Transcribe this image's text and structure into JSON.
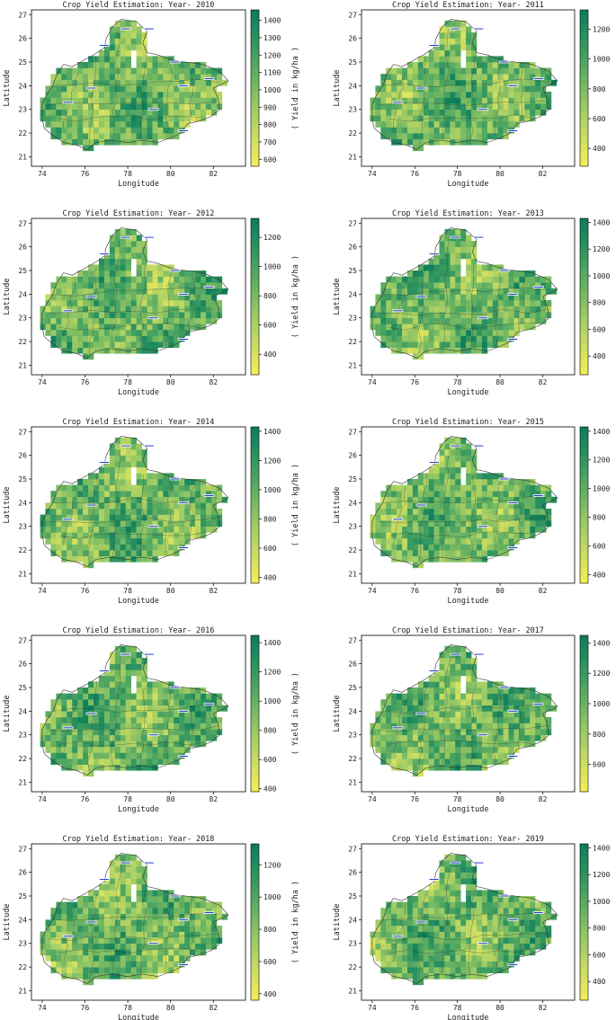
{
  "figure": {
    "x_label": "Longitude",
    "y_label": "Latitude",
    "colorbar_label": "( Yield in kg/ha )",
    "x_ticks": [
      74,
      76,
      78,
      80,
      82
    ],
    "y_ticks": [
      21,
      22,
      23,
      24,
      25,
      26,
      27
    ],
    "xlim": [
      73.5,
      83.5
    ],
    "ylim": [
      20.6,
      27.2
    ],
    "colormap": [
      "#f5ee58",
      "#c8dc63",
      "#96c864",
      "#5fae62",
      "#2e9460",
      "#0b7c5a"
    ]
  },
  "chart_data": [
    {
      "type": "heatmap",
      "title": "Crop Yield Estimation: Year- 2010",
      "colorbar_range": [
        560,
        1460
      ],
      "colorbar_ticks": [
        600,
        700,
        800,
        900,
        1000,
        1100,
        1200,
        1300,
        1400
      ]
    },
    {
      "type": "heatmap",
      "title": "Crop Yield Estimation: Year- 2011",
      "colorbar_range": [
        280,
        1330
      ],
      "colorbar_ticks": [
        400,
        600,
        800,
        1000,
        1200
      ]
    },
    {
      "type": "heatmap",
      "title": "Crop Yield Estimation: Year- 2012",
      "colorbar_range": [
        260,
        1330
      ],
      "colorbar_ticks": [
        400,
        600,
        800,
        1000,
        1200
      ]
    },
    {
      "type": "heatmap",
      "title": "Crop Yield Estimation: Year- 2013",
      "colorbar_range": [
        260,
        1430
      ],
      "colorbar_ticks": [
        400,
        600,
        800,
        1000,
        1200,
        1400
      ]
    },
    {
      "type": "heatmap",
      "title": "Crop Yield Estimation: Year- 2014",
      "colorbar_range": [
        360,
        1430
      ],
      "colorbar_ticks": [
        400,
        600,
        800,
        1000,
        1200,
        1400
      ]
    },
    {
      "type": "heatmap",
      "title": "Crop Yield Estimation: Year- 2015",
      "colorbar_range": [
        340,
        1430
      ],
      "colorbar_ticks": [
        400,
        600,
        800,
        1000,
        1200,
        1400
      ]
    },
    {
      "type": "heatmap",
      "title": "Crop Yield Estimation: Year- 2016",
      "colorbar_range": [
        380,
        1450
      ],
      "colorbar_ticks": [
        400,
        600,
        800,
        1000,
        1200,
        1400
      ]
    },
    {
      "type": "heatmap",
      "title": "Crop Yield Estimation: Year- 2017",
      "colorbar_range": [
        420,
        1450
      ],
      "colorbar_ticks": [
        600,
        800,
        1000,
        1200,
        1400
      ]
    },
    {
      "type": "heatmap",
      "title": "Crop Yield Estimation: Year- 2018",
      "colorbar_range": [
        360,
        1330
      ],
      "colorbar_ticks": [
        400,
        600,
        800,
        1000,
        1200
      ]
    },
    {
      "type": "heatmap",
      "title": "Crop Yield Estimation: Year- 2019",
      "colorbar_range": [
        260,
        1430
      ],
      "colorbar_ticks": [
        400,
        600,
        800,
        1000,
        1200,
        1400
      ]
    }
  ]
}
